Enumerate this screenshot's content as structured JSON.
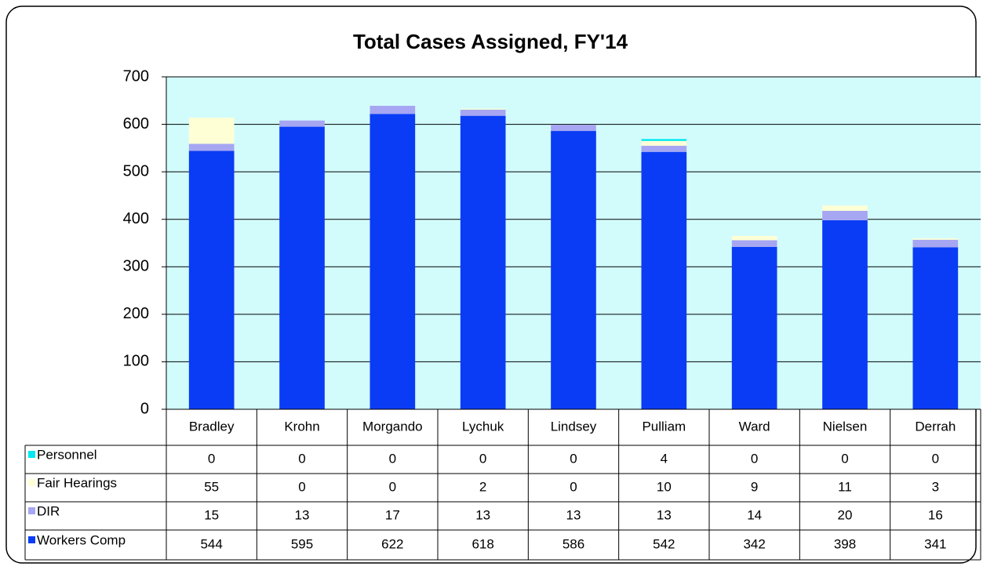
{
  "chart_data": {
    "type": "bar",
    "stacked": true,
    "data_table": true,
    "grid": true,
    "title": "Total Cases Assigned, FY'14",
    "categories": [
      "Bradley",
      "Krohn",
      "Morgando",
      "Lychuk",
      "Lindsey",
      "Pulliam",
      "Ward",
      "Nielsen",
      "Derrah"
    ],
    "series": [
      {
        "name": "Personnel",
        "color": "#00e8f0",
        "values": [
          0,
          0,
          0,
          0,
          0,
          4,
          0,
          0,
          0
        ]
      },
      {
        "name": "Fair Hearings",
        "color": "#ffffd6",
        "values": [
          55,
          0,
          0,
          2,
          0,
          10,
          9,
          11,
          3
        ]
      },
      {
        "name": "DIR",
        "color": "#a6a6f2",
        "values": [
          15,
          13,
          17,
          13,
          13,
          13,
          14,
          20,
          16
        ]
      },
      {
        "name": "Workers Comp",
        "color": "#0a3cf5",
        "values": [
          544,
          595,
          622,
          618,
          586,
          542,
          342,
          398,
          341
        ]
      }
    ],
    "ylim": [
      0,
      700
    ],
    "yticks": [
      0,
      100,
      200,
      300,
      400,
      500,
      600,
      700
    ]
  }
}
